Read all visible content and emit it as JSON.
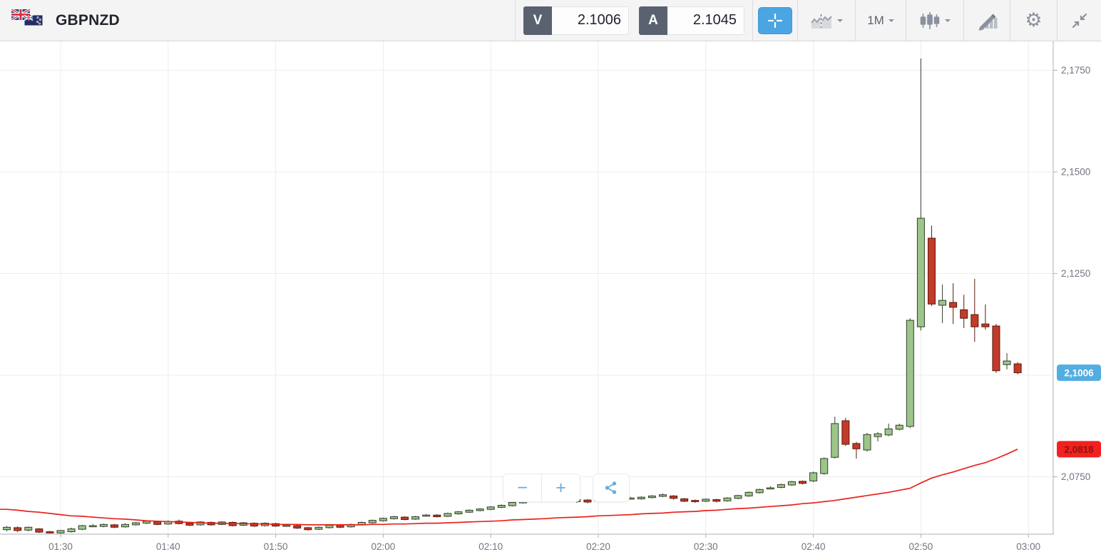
{
  "header": {
    "symbol": "GBPNZD",
    "flag_icons": [
      "uk-flag",
      "nz-flag"
    ],
    "bid": {
      "label": "V",
      "value": "2.1006"
    },
    "ask": {
      "label": "A",
      "value": "2.1045"
    },
    "timeframe": "1M",
    "icons": {
      "crosshair": "crosshair-icon",
      "compare_chart": "dual-area-chart-icon",
      "candlestick_style": "candlestick-icon",
      "indicators": "pencil-bars-icon",
      "settings": "gear-icon",
      "collapse": "collapse-arrows-icon",
      "gear_glyph": "⚙"
    }
  },
  "controls": {
    "zoom_out": "−",
    "zoom_in": "+",
    "share": "share-icon"
  },
  "colors": {
    "accent_blue": "#4aa5e2",
    "bull": "#9cc689",
    "bull_stroke": "#333d2b",
    "bear": "#c23b2a",
    "bear_stroke": "#5c170b",
    "ma_line": "#e8231c",
    "badge_blue": "#52aee2",
    "badge_red": "#f32020",
    "grid": "#ededf0",
    "axis_line": "#b0b0b5",
    "axis_text": "#71757f"
  },
  "chart_data": {
    "type": "candlestick",
    "symbol": "GBPNZD",
    "interval": "1m",
    "start_time": "01:25",
    "grid": true,
    "x_tick_labels": [
      "01:30",
      "01:40",
      "01:50",
      "02:00",
      "02:10",
      "02:20",
      "02:30",
      "02:40",
      "02:50",
      "03:00"
    ],
    "y_tick_labels": [
      "2,1750",
      "2,1500",
      "2,1250",
      "2,0750"
    ],
    "y_tick_prices": [
      2.175,
      2.15,
      2.125,
      2.075
    ],
    "grid_y_prices": [
      2.175,
      2.15,
      2.125,
      2.1,
      2.075
    ],
    "y_range": [
      2.0609,
      2.1821
    ],
    "last_price_badge": {
      "label": "2,1006",
      "price": 2.1006
    },
    "ma_badge": {
      "label": "2,0818",
      "price": 2.0818
    },
    "candles": [
      [
        2.062,
        2.0629,
        2.0616,
        2.0626
      ],
      [
        2.0625,
        2.0628,
        2.0614,
        2.0618
      ],
      [
        2.0619,
        2.0628,
        2.0616,
        2.0626
      ],
      [
        2.0622,
        2.0624,
        2.0612,
        2.0614
      ],
      [
        2.0615,
        2.0617,
        2.0611,
        2.0612
      ],
      [
        2.0612,
        2.0619,
        2.061,
        2.0618
      ],
      [
        2.0615,
        2.0625,
        2.0613,
        2.0622
      ],
      [
        2.0621,
        2.0632,
        2.0619,
        2.063
      ],
      [
        2.0629,
        2.0634,
        2.0626,
        2.063
      ],
      [
        2.0628,
        2.0635,
        2.0626,
        2.0633
      ],
      [
        2.0632,
        2.0634,
        2.0624,
        2.0626
      ],
      [
        2.0627,
        2.0636,
        2.0625,
        2.0633
      ],
      [
        2.0632,
        2.0639,
        2.063,
        2.0637
      ],
      [
        2.0636,
        2.0643,
        2.0634,
        2.0641
      ],
      [
        2.064,
        2.0642,
        2.0631,
        2.0633
      ],
      [
        2.0634,
        2.0643,
        2.0632,
        2.064
      ],
      [
        2.0641,
        2.0645,
        2.0633,
        2.0635
      ],
      [
        2.0636,
        2.0639,
        2.0629,
        2.0631
      ],
      [
        2.0632,
        2.0641,
        2.063,
        2.0639
      ],
      [
        2.0638,
        2.064,
        2.063,
        2.0632
      ],
      [
        2.0633,
        2.0641,
        2.0631,
        2.0639
      ],
      [
        2.0638,
        2.064,
        2.0628,
        2.063
      ],
      [
        2.0631,
        2.0639,
        2.0629,
        2.0637
      ],
      [
        2.0636,
        2.0638,
        2.0627,
        2.0629
      ],
      [
        2.063,
        2.0638,
        2.0628,
        2.0636
      ],
      [
        2.0635,
        2.0637,
        2.0627,
        2.0629
      ],
      [
        2.063,
        2.0634,
        2.0627,
        2.0631
      ],
      [
        2.063,
        2.0632,
        2.0622,
        2.0624
      ],
      [
        2.0625,
        2.0627,
        2.0618,
        2.062
      ],
      [
        2.0621,
        2.0628,
        2.0619,
        2.0626
      ],
      [
        2.0625,
        2.0633,
        2.0623,
        2.0631
      ],
      [
        2.0632,
        2.0634,
        2.0624,
        2.0626
      ],
      [
        2.0627,
        2.0635,
        2.0625,
        2.0633
      ],
      [
        2.0632,
        2.064,
        2.063,
        2.0638
      ],
      [
        2.0637,
        2.0645,
        2.0635,
        2.0643
      ],
      [
        2.0642,
        2.065,
        2.064,
        2.0648
      ],
      [
        2.0647,
        2.0654,
        2.0645,
        2.0652
      ],
      [
        2.0651,
        2.0653,
        2.0643,
        2.0645
      ],
      [
        2.0646,
        2.0654,
        2.0644,
        2.0652
      ],
      [
        2.0655,
        2.0659,
        2.0652,
        2.0656
      ],
      [
        2.0656,
        2.0658,
        2.065,
        2.0652
      ],
      [
        2.0653,
        2.0662,
        2.0651,
        2.066
      ],
      [
        2.0659,
        2.0666,
        2.0657,
        2.0664
      ],
      [
        2.0663,
        2.067,
        2.0661,
        2.0668
      ],
      [
        2.0667,
        2.0673,
        2.0665,
        2.0671
      ],
      [
        2.067,
        2.0678,
        2.0668,
        2.0676
      ],
      [
        2.0675,
        2.0682,
        2.0673,
        2.068
      ],
      [
        2.0679,
        2.0689,
        2.0677,
        2.0687
      ],
      [
        2.0686,
        2.0694,
        2.0684,
        2.0692
      ],
      [
        2.0691,
        2.0699,
        2.0689,
        2.0697
      ],
      [
        2.0695,
        2.0699,
        2.0692,
        2.0696
      ],
      [
        2.0694,
        2.0698,
        2.0691,
        2.0695
      ],
      [
        2.0695,
        2.0697,
        2.0688,
        2.069
      ],
      [
        2.0689,
        2.0697,
        2.0686,
        2.0694
      ],
      [
        2.0693,
        2.0695,
        2.0685,
        2.0688
      ],
      [
        2.0692,
        2.0696,
        2.0689,
        2.0693
      ],
      [
        2.0692,
        2.0698,
        2.069,
        2.0696
      ],
      [
        2.0695,
        2.0701,
        2.0693,
        2.0699
      ],
      [
        2.0697,
        2.0701,
        2.0694,
        2.0698
      ],
      [
        2.0696,
        2.0702,
        2.0694,
        2.07
      ],
      [
        2.0699,
        2.0705,
        2.0697,
        2.0703
      ],
      [
        2.0702,
        2.0709,
        2.07,
        2.0706
      ],
      [
        2.0703,
        2.0705,
        2.0694,
        2.0697
      ],
      [
        2.0696,
        2.0698,
        2.0688,
        2.069
      ],
      [
        2.0692,
        2.0694,
        2.0686,
        2.0689
      ],
      [
        2.069,
        2.0697,
        2.0688,
        2.0695
      ],
      [
        2.0694,
        2.0696,
        2.0687,
        2.069
      ],
      [
        2.0691,
        2.07,
        2.0689,
        2.0698
      ],
      [
        2.0697,
        2.0706,
        2.0695,
        2.0704
      ],
      [
        2.0703,
        2.0714,
        2.0701,
        2.0712
      ],
      [
        2.0711,
        2.0721,
        2.0709,
        2.0719
      ],
      [
        2.0722,
        2.0727,
        2.0719,
        2.0723
      ],
      [
        2.0724,
        2.0733,
        2.0722,
        2.0731
      ],
      [
        2.073,
        2.074,
        2.0728,
        2.0738
      ],
      [
        2.0739,
        2.0741,
        2.0731,
        2.0734
      ],
      [
        2.074,
        2.0763,
        2.0737,
        2.076
      ],
      [
        2.0758,
        2.0798,
        2.0755,
        2.0795
      ],
      [
        2.0798,
        2.0898,
        2.0795,
        2.0881
      ],
      [
        2.0888,
        2.0895,
        2.0826,
        2.083
      ],
      [
        2.0832,
        2.0836,
        2.0795,
        2.0819
      ],
      [
        2.0816,
        2.0858,
        2.0812,
        2.0854
      ],
      [
        2.0849,
        2.086,
        2.0837,
        2.0856
      ],
      [
        2.0853,
        2.0881,
        2.085,
        2.0868
      ],
      [
        2.0867,
        2.0881,
        2.0864,
        2.0877
      ],
      [
        2.0874,
        2.114,
        2.087,
        2.1135
      ],
      [
        2.1119,
        2.1779,
        2.111,
        2.1386
      ],
      [
        2.1337,
        2.1368,
        2.117,
        2.1175
      ],
      [
        2.1172,
        2.1223,
        2.1128,
        2.1184
      ],
      [
        2.1179,
        2.1226,
        2.1126,
        2.1167
      ],
      [
        2.1161,
        2.1198,
        2.1116,
        2.114
      ],
      [
        2.1149,
        2.1237,
        2.1082,
        2.1119
      ],
      [
        2.1126,
        2.1174,
        2.1112,
        2.1119
      ],
      [
        2.1121,
        2.1126,
        2.1006,
        2.1011
      ],
      [
        2.1026,
        2.1054,
        2.1014,
        2.1035
      ],
      [
        2.1028,
        2.1032,
        2.1002,
        2.1006
      ]
    ],
    "ma_values": [
      2.067,
      2.0668,
      2.0665,
      2.0663,
      2.066,
      2.0657,
      2.0654,
      2.0653,
      2.0651,
      2.0649,
      2.0647,
      2.0646,
      2.0644,
      2.0642,
      2.0641,
      2.064,
      2.0639,
      2.0638,
      2.0637,
      2.0636,
      2.0636,
      2.0635,
      2.0635,
      2.0634,
      2.0634,
      2.0633,
      2.0633,
      2.0633,
      2.0632,
      2.0632,
      2.0632,
      2.0632,
      2.0632,
      2.0632,
      2.0633,
      2.0633,
      2.0634,
      2.0634,
      2.0635,
      2.0636,
      2.0636,
      2.0637,
      2.0638,
      2.0639,
      2.064,
      2.0641,
      2.0642,
      2.0644,
      2.0645,
      2.0646,
      2.0647,
      2.0649,
      2.065,
      2.0651,
      2.0652,
      2.0654,
      2.0655,
      2.0656,
      2.0657,
      2.0659,
      2.066,
      2.0661,
      2.0663,
      2.0664,
      2.0665,
      2.0667,
      2.0668,
      2.067,
      2.0672,
      2.0673,
      2.0675,
      2.0677,
      2.0679,
      2.0681,
      2.0684,
      2.0686,
      2.0689,
      2.0692,
      2.0696,
      2.07,
      2.0704,
      2.0708,
      2.0712,
      2.0717,
      2.0722,
      2.0735,
      2.0747,
      2.0755,
      2.0762,
      2.077,
      2.0778,
      2.0785,
      2.0795,
      2.0806,
      2.0818
    ]
  }
}
